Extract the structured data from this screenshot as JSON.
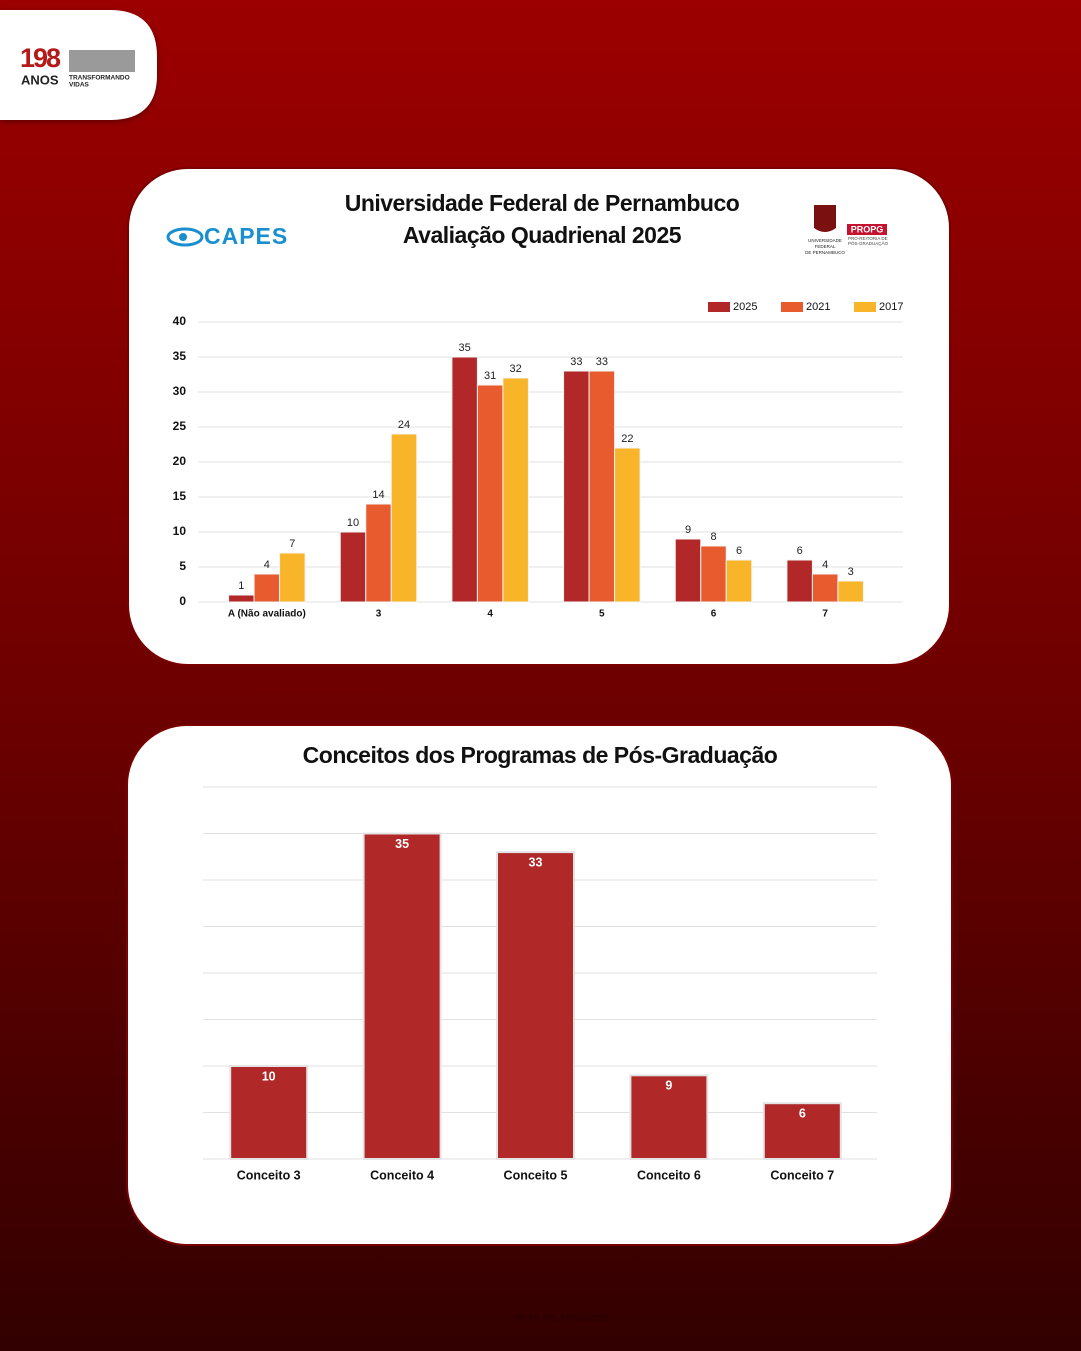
{
  "logos": {
    "anniversary": {
      "number": "198",
      "word": "ANOS",
      "slogan": [
        "TRANSFORMANDO",
        "VIDAS"
      ]
    },
    "capes": "CAPES",
    "ufpe": [
      "UNIVERSIDADE",
      "FEDERAL",
      "DE PERNAMBUCO"
    ],
    "propg": {
      "name": "PROPG",
      "full": [
        "PRÓ-REITORIA DE",
        "PÓS-GRADUAÇÃO"
      ]
    }
  },
  "chart_data": [
    {
      "type": "grouped_bar",
      "title": "Universidade Federal de Pernambuco",
      "subtitle": "Avaliação Quadrienal 2025",
      "categories": [
        "A (Não avaliado)",
        "3",
        "4",
        "5",
        "6",
        "7"
      ],
      "series": [
        {
          "name": "2025",
          "color": "#b22727",
          "values": [
            1,
            10,
            35,
            33,
            9,
            6
          ]
        },
        {
          "name": "2021",
          "color": "#e85b2e",
          "values": [
            4,
            14,
            31,
            33,
            8,
            4
          ]
        },
        {
          "name": "2017",
          "color": "#f9b529",
          "values": [
            7,
            24,
            32,
            22,
            6,
            3
          ]
        }
      ],
      "ylim": [
        0,
        40
      ],
      "yticks": [
        0,
        5,
        10,
        15,
        20,
        25,
        30,
        35,
        40
      ],
      "grid": true,
      "legend": "top-right"
    },
    {
      "type": "bar",
      "title": "Conceitos dos Programas de Pós-Graduação",
      "categories": [
        "Conceito 3",
        "Conceito 4",
        "Conceito 5",
        "Conceito 6",
        "Conceito 7"
      ],
      "values": [
        10,
        35,
        33,
        9,
        6
      ],
      "color": "#b02828",
      "ylim": [
        0,
        40
      ],
      "yticks": [
        0,
        5,
        10,
        15,
        20,
        25,
        30,
        35,
        40
      ],
      "grid": true,
      "ytick_labels": false
    }
  ],
  "footer": "Nota de Avaliação"
}
